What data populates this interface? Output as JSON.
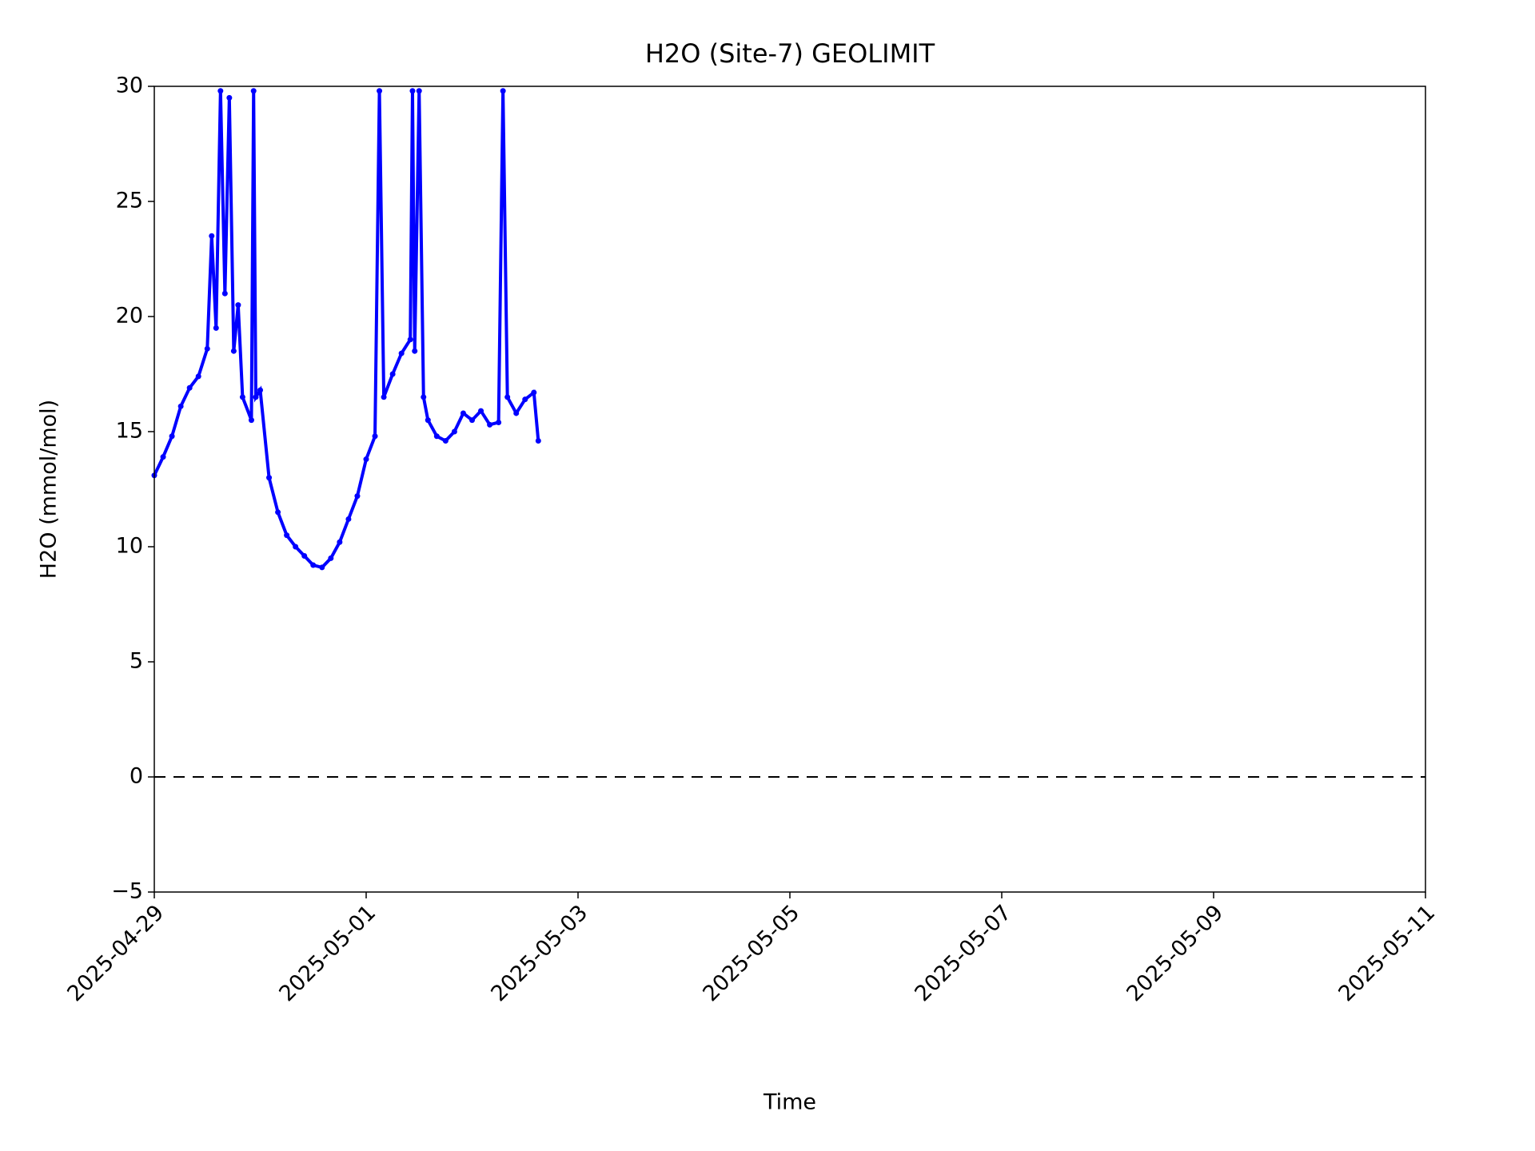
{
  "chart_data": {
    "type": "scatter",
    "title": "H2O (Site-7) GEOLIMIT",
    "x_label": "Time",
    "y_label": "H2O (mmol/mol)",
    "series": [
      {
        "color": "#0000ff",
        "x": [
          "2025-04-29 00:00",
          "2025-04-29 02:00",
          "2025-04-29 04:00",
          "2025-04-29 06:00",
          "2025-04-29 08:00",
          "2025-04-29 10:00",
          "2025-04-29 12:00",
          "2025-04-29 13:00",
          "2025-04-29 14:00",
          "2025-04-29 15:00",
          "2025-04-29 16:00",
          "2025-04-29 17:00",
          "2025-04-29 18:00",
          "2025-04-29 19:00",
          "2025-04-29 20:00",
          "2025-04-29 22:00",
          "2025-04-29 22:30",
          "2025-04-29 23:00",
          "2025-04-30 00:00",
          "2025-04-30 02:00",
          "2025-04-30 04:00",
          "2025-04-30 06:00",
          "2025-04-30 08:00",
          "2025-04-30 10:00",
          "2025-04-30 12:00",
          "2025-04-30 14:00",
          "2025-04-30 16:00",
          "2025-04-30 18:00",
          "2025-04-30 20:00",
          "2025-04-30 22:00",
          "2025-05-01 00:00",
          "2025-05-01 02:00",
          "2025-05-01 03:00",
          "2025-05-01 04:00",
          "2025-05-01 06:00",
          "2025-05-01 08:00",
          "2025-05-01 10:00",
          "2025-05-01 10:30",
          "2025-05-01 11:00",
          "2025-05-01 12:00",
          "2025-05-01 13:00",
          "2025-05-01 14:00",
          "2025-05-01 16:00",
          "2025-05-01 18:00",
          "2025-05-01 20:00",
          "2025-05-01 22:00",
          "2025-05-02 00:00",
          "2025-05-02 02:00",
          "2025-05-02 04:00",
          "2025-05-02 06:00",
          "2025-05-02 07:00",
          "2025-05-02 08:00",
          "2025-05-02 10:00",
          "2025-05-02 12:00",
          "2025-05-02 14:00",
          "2025-05-02 15:00"
        ],
        "values": [
          13.1,
          13.9,
          14.8,
          16.1,
          16.9,
          17.4,
          18.6,
          23.5,
          19.5,
          29.8,
          21.0,
          29.5,
          18.5,
          20.5,
          16.5,
          15.5,
          29.8,
          16.5,
          16.8,
          13.0,
          11.5,
          10.5,
          10.0,
          9.6,
          9.2,
          9.1,
          9.5,
          10.2,
          11.2,
          12.2,
          13.8,
          14.8,
          29.8,
          16.5,
          17.5,
          18.4,
          19.0,
          29.8,
          18.5,
          29.8,
          16.5,
          15.5,
          14.8,
          14.6,
          15.0,
          15.8,
          15.5,
          15.9,
          15.3,
          15.4,
          29.8,
          16.5,
          15.8,
          16.4,
          16.7,
          14.6
        ]
      }
    ],
    "reference_line": {
      "y": 0,
      "color": "#000000",
      "style": "dashed"
    },
    "xlim": [
      "2025-04-29",
      "2025-05-11"
    ],
    "xticks": [
      "2025-04-29",
      "2025-05-01",
      "2025-05-03",
      "2025-05-05",
      "2025-05-07",
      "2025-05-09",
      "2025-05-11"
    ],
    "ylim": [
      -5,
      30
    ],
    "yticks": [
      {
        "value": -5,
        "label": "−5"
      },
      0,
      5,
      10,
      15,
      20,
      25,
      30
    ]
  }
}
